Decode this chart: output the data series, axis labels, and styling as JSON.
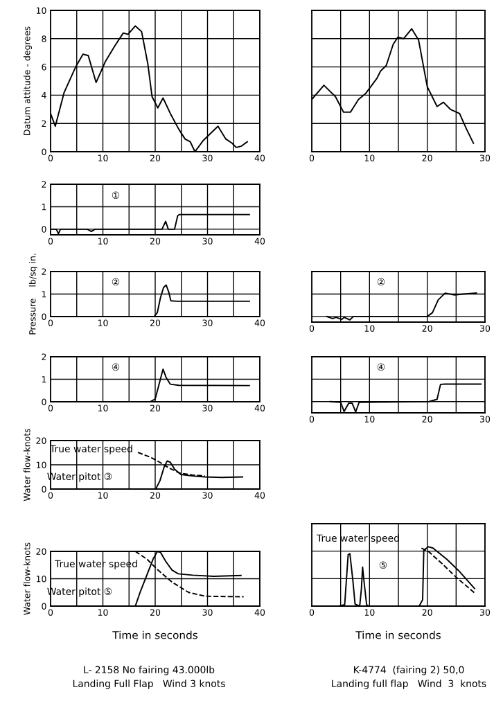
{
  "chart_data": [
    {
      "type": "line",
      "ylabel": "Datum attitude - degrees",
      "xlim": [
        0,
        40
      ],
      "ylim": [
        0,
        10
      ],
      "xticks": [
        0,
        {
          "value": 5,
          "label": null
        },
        10,
        {
          "value": 15,
          "label": null
        },
        20,
        {
          "value": 25,
          "label": null
        },
        30,
        {
          "value": 35,
          "label": null
        },
        40
      ],
      "yticks": [
        0,
        2,
        4,
        6,
        8,
        10
      ],
      "grid": true,
      "series": [
        {
          "color": "#000000",
          "line_style": "solid",
          "x": [
            0,
            0.9,
            2.6,
            4.8,
            6.2,
            7.2,
            8.7,
            10.5,
            12.3,
            13.9,
            14.8,
            16.2,
            17.4,
            18.6,
            19.4,
            20.5,
            21.5,
            22.9,
            24.5,
            25.7,
            26.7,
            27.6,
            29.2,
            32,
            33.5,
            34.7,
            35.5,
            36.5,
            37.6
          ],
          "values": [
            2.7,
            1.8,
            4.2,
            6.0,
            6.9,
            6.8,
            4.9,
            6.4,
            7.5,
            8.4,
            8.3,
            8.9,
            8.5,
            6.2,
            3.9,
            3.1,
            3.8,
            2.7,
            1.6,
            0.9,
            0.7,
            0,
            0.8,
            1.8,
            0.9,
            0.6,
            0.3,
            0.4,
            0.7
          ]
        }
      ]
    },
    {
      "type": "line",
      "tick_labels": "x",
      "xlim": [
        0,
        30
      ],
      "ylim": [
        0,
        10
      ],
      "xticks": [
        0,
        {
          "value": 5,
          "label": null
        },
        10,
        {
          "value": 15,
          "label": null
        },
        20,
        {
          "value": 25,
          "label": null
        },
        30
      ],
      "yticks": [
        0,
        2,
        4,
        6,
        8,
        10
      ],
      "grid": true,
      "series": [
        {
          "color": "#000000",
          "line_style": "solid",
          "x": [
            0,
            2.1,
            4.1,
            5.5,
            6.7,
            8.1,
            9.3,
            11.3,
            11.9,
            12.9,
            14.1,
            14.9,
            15.9,
            17.3,
            18.5,
            20,
            21.7,
            22.8,
            24,
            25.6,
            26.8,
            28
          ],
          "values": [
            3.7,
            4.7,
            3.9,
            2.8,
            2.8,
            3.7,
            4.1,
            5.2,
            5.7,
            6.1,
            7.6,
            8.1,
            8.0,
            8.7,
            7.9,
            4.6,
            3.2,
            3.5,
            3.0,
            2.7,
            1.6,
            0.6
          ]
        }
      ]
    },
    {
      "type": "line",
      "xlim": [
        0,
        40
      ],
      "ylim": [
        -0.25,
        2
      ],
      "xticks": [
        0,
        {
          "value": 5,
          "label": null
        },
        10,
        {
          "value": 15,
          "label": null
        },
        20,
        {
          "value": 25,
          "label": null
        },
        30,
        {
          "value": 35,
          "label": null
        },
        40
      ],
      "yticks": [
        0,
        1,
        2
      ],
      "grid": true,
      "annotations": [
        "①"
      ],
      "series": [
        {
          "color": "#000000",
          "line_style": "solid",
          "x": [
            0,
            1.1,
            1.5,
            1.9,
            7,
            7.8,
            8.5,
            21.3,
            22,
            22.5,
            23.7,
            24.3,
            24.6,
            38
          ],
          "values": [
            0,
            0,
            -0.2,
            0,
            0,
            -0.1,
            0,
            0,
            0.35,
            0,
            0,
            0.6,
            0.65,
            0.65
          ]
        }
      ]
    },
    {
      "type": "line",
      "ylabel": "Pressure    lb/sq in.",
      "xlim": [
        0,
        40
      ],
      "ylim": [
        0,
        2
      ],
      "xticks": [
        0,
        {
          "value": 5,
          "label": null
        },
        10,
        {
          "value": 15,
          "label": null
        },
        20,
        {
          "value": 25,
          "label": null
        },
        30,
        {
          "value": 35,
          "label": null
        },
        40
      ],
      "yticks": [
        0,
        1,
        2
      ],
      "grid": true,
      "annotations": [
        "②"
      ],
      "series": [
        {
          "color": "#000000",
          "line_style": "solid",
          "x": [
            1.7,
            19.8,
            20.4,
            21,
            21.6,
            22.1,
            22.6,
            23,
            24.1,
            38
          ],
          "values": [
            0,
            0,
            0.17,
            0.83,
            1.29,
            1.4,
            1.08,
            0.7,
            0.68,
            0.68
          ]
        }
      ]
    },
    {
      "type": "line",
      "tick_labels": "x",
      "xlim": [
        0,
        30
      ],
      "ylim": [
        -0.25,
        2
      ],
      "xticks": [
        0,
        {
          "value": 5,
          "label": null
        },
        10,
        {
          "value": 15,
          "label": null
        },
        20,
        {
          "value": 25,
          "label": null
        },
        30
      ],
      "yticks": [
        0,
        1,
        2
      ],
      "grid": true,
      "annotations": [
        "②"
      ],
      "series": [
        {
          "color": "#000000",
          "line_style": "solid",
          "x": [
            2.6,
            3.6,
            4.2,
            5.2,
            5.6,
            6.6,
            7.2,
            20,
            20.9,
            21.9,
            23.1,
            24.7,
            26.3,
            28.5
          ],
          "values": [
            0,
            -0.09,
            -0.04,
            -0.13,
            -0.04,
            -0.15,
            0,
            0,
            0.17,
            0.74,
            1.04,
            0.96,
            1.0,
            1.04
          ]
        }
      ]
    },
    {
      "type": "line",
      "xlim": [
        0,
        40
      ],
      "ylim": [
        0,
        2
      ],
      "xticks": [
        0,
        {
          "value": 5,
          "label": null
        },
        10,
        {
          "value": 15,
          "label": null
        },
        20,
        {
          "value": 25,
          "label": null
        },
        30,
        {
          "value": 35,
          "label": null
        },
        40
      ],
      "yticks": [
        0,
        1,
        2
      ],
      "grid": true,
      "annotations": [
        "④"
      ],
      "series": [
        {
          "color": "#000000",
          "line_style": "solid",
          "x": [
            0,
            19,
            20,
            20.7,
            21.5,
            22.1,
            22.9,
            24.5,
            38
          ],
          "values": [
            0,
            0,
            0.12,
            0.74,
            1.45,
            1.07,
            0.78,
            0.73,
            0.72
          ]
        }
      ]
    },
    {
      "type": "line",
      "tick_labels": "x",
      "xlim": [
        0,
        30
      ],
      "ylim": [
        -0.5,
        2
      ],
      "xticks": [
        0,
        {
          "value": 5,
          "label": null
        },
        10,
        {
          "value": 15,
          "label": null
        },
        20,
        {
          "value": 25,
          "label": null
        },
        30
      ],
      "yticks": [
        0,
        1,
        2
      ],
      "grid": true,
      "annotations": [
        "④"
      ],
      "series": [
        {
          "color": "#000000",
          "line_style": "solid",
          "x": [
            3.2,
            5,
            5.6,
            6.4,
            7,
            7.6,
            8.2,
            20.3,
            21.7,
            22.3,
            23.1,
            29.3
          ],
          "values": [
            0,
            -0.03,
            -0.44,
            -0.07,
            -0.07,
            -0.46,
            -0.03,
            0,
            0.1,
            0.77,
            0.78,
            0.78
          ]
        }
      ]
    },
    {
      "type": "line",
      "ylabel": "Water flow-knots",
      "xlim": [
        0,
        40
      ],
      "ylim": [
        0,
        20
      ],
      "xticks": [
        0,
        {
          "value": 5,
          "label": null
        },
        10,
        {
          "value": 15,
          "label": null
        },
        20,
        {
          "value": 25,
          "label": null
        },
        30,
        {
          "value": 35,
          "label": null
        },
        40
      ],
      "yticks": [
        0,
        10,
        20
      ],
      "grid": true,
      "annotations": [
        "True water speed",
        "Water pitot ③"
      ],
      "series": [
        {
          "color": "#000000",
          "line_style": "solid",
          "x": [
            0,
            20.1,
            20.9,
            21.7,
            22.3,
            22.9,
            23.7,
            24.9,
            27.1,
            29.5,
            32.7,
            36.7
          ],
          "values": [
            0,
            0,
            3.4,
            9.0,
            11.6,
            11.0,
            8.2,
            6.0,
            5.4,
            5.0,
            4.8,
            5.0
          ]
        },
        {
          "color": "#000000",
          "line_style": "dashed",
          "x": [
            16.7,
            19.1,
            20.9,
            22.7,
            24.7,
            27.1,
            29.5
          ],
          "values": [
            15.1,
            13.1,
            11.0,
            8.6,
            6.6,
            5.8,
            5.4
          ]
        }
      ]
    },
    {
      "type": "line",
      "tick_labels": "x",
      "xlabel": "Time in seconds",
      "xlim": [
        0,
        30
      ],
      "ylim": [
        0,
        30
      ],
      "xticks": [
        0,
        {
          "value": 5,
          "label": null
        },
        10,
        {
          "value": 15,
          "label": null
        },
        20,
        {
          "value": 25,
          "label": null
        },
        30
      ],
      "yticks": [
        0,
        10,
        20,
        30
      ],
      "grid": true,
      "annotations": [
        "True water speed",
        "⑤",
        "K-4774  (fairing 2) 50,0",
        "Landing full flap   Wind  3  knots"
      ],
      "series": [
        {
          "color": "#000000",
          "line_style": "solid",
          "x": [
            4.7,
            5.7,
            6.3,
            6.6,
            7.1,
            7.5,
            8.3,
            8.6,
            8.8,
            9.1,
            9.5,
            9.9,
            18.6,
            19.2,
            19.4,
            20.2,
            21,
            23.4,
            25.4,
            28.2
          ],
          "values": [
            0,
            0.5,
            18.7,
            19.1,
            9.7,
            0.7,
            0,
            6.4,
            14.2,
            8.0,
            0.5,
            0,
            0,
            2.3,
            20.3,
            21.6,
            21.1,
            17,
            13,
            6.4
          ]
        },
        {
          "color": "#000000",
          "line_style": "dashed",
          "x": [
            19,
            20.2,
            22.6,
            25,
            28.2
          ],
          "values": [
            21.1,
            19.9,
            15.4,
            10.5,
            4.8
          ]
        }
      ]
    },
    {
      "type": "line",
      "ylabel": "Water flow-knots",
      "xlabel": "Time in seconds",
      "xlim": [
        0,
        40
      ],
      "ylim": [
        0,
        20
      ],
      "xticks": [
        0,
        {
          "value": 5,
          "label": null
        },
        10,
        {
          "value": 15,
          "label": null
        },
        20,
        {
          "value": 25,
          "label": null
        },
        30,
        {
          "value": 35,
          "label": null
        },
        40
      ],
      "yticks": [
        0,
        10,
        20
      ],
      "grid": true,
      "annotations": [
        "True water speed",
        "Water pitot ⑤",
        "L- 2158 No fairing 43.000lb",
        "Landing Full Flap   Wind 3 knots"
      ],
      "series": [
        {
          "color": "#000000",
          "line_style": "solid",
          "x": [
            15.2,
            16.2,
            17.2,
            18.4,
            19.6,
            20.4,
            21,
            22,
            23.2,
            24.4,
            27.2,
            31.2,
            36.4
          ],
          "values": [
            0,
            0,
            5.5,
            11.3,
            17.2,
            19.9,
            19.7,
            16.4,
            13.2,
            11.8,
            11.3,
            10.9,
            11.2
          ]
        },
        {
          "color": "#000000",
          "line_style": "dashed",
          "x": [
            16.2,
            18.4,
            20.4,
            23.2,
            26.4,
            29.6,
            36.9
          ],
          "values": [
            20,
            17.2,
            13.4,
            8.8,
            5.0,
            3.6,
            3.4
          ]
        }
      ]
    }
  ]
}
